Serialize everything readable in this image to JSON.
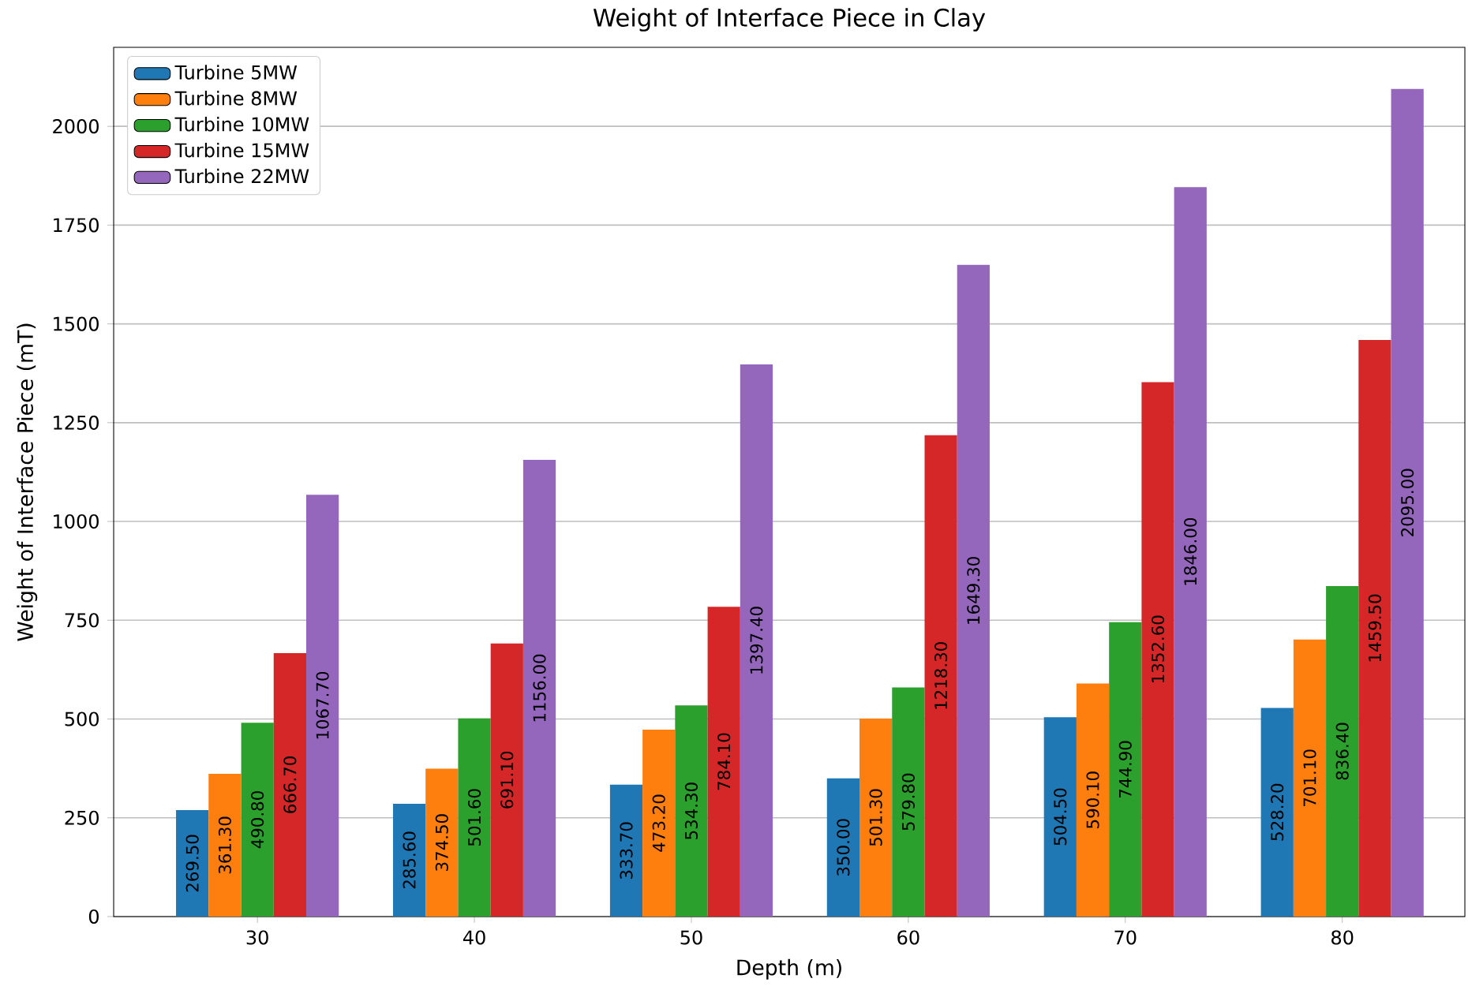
{
  "chart_data": {
    "type": "bar",
    "title": "Weight of Interface Piece in Clay",
    "xlabel": "Depth (m)",
    "ylabel": "Weight of Interface Piece (mT)",
    "categories": [
      "30",
      "40",
      "50",
      "60",
      "70",
      "80"
    ],
    "series": [
      {
        "name": "Turbine 5MW",
        "color": "#1f77b4",
        "values": [
          269.5,
          285.6,
          333.7,
          350.0,
          504.5,
          528.2
        ],
        "value_labels": [
          "269.50",
          "285.60",
          "333.70",
          "350.00",
          "504.50",
          "528.20"
        ]
      },
      {
        "name": "Turbine 8MW",
        "color": "#ff7f0e",
        "values": [
          361.3,
          374.5,
          473.2,
          501.3,
          590.1,
          701.1
        ],
        "value_labels": [
          "361.30",
          "374.50",
          "473.20",
          "501.30",
          "590.10",
          "701.10"
        ]
      },
      {
        "name": "Turbine 10MW",
        "color": "#2ca02c",
        "values": [
          490.8,
          501.6,
          534.3,
          579.8,
          744.9,
          836.4
        ],
        "value_labels": [
          "490.80",
          "501.60",
          "534.30",
          "579.80",
          "744.90",
          "836.40"
        ]
      },
      {
        "name": "Turbine 15MW",
        "color": "#d62728",
        "values": [
          666.7,
          691.1,
          784.1,
          1218.3,
          1352.6,
          1459.5
        ],
        "value_labels": [
          "666.70",
          "691.10",
          "784.10",
          "1218.30",
          "1352.60",
          "1459.50"
        ]
      },
      {
        "name": "Turbine 22MW",
        "color": "#9467bd",
        "values": [
          1067.7,
          1156.0,
          1397.4,
          1649.3,
          1846.0,
          2095.0
        ],
        "value_labels": [
          "1067.70",
          "1156.00",
          "1397.40",
          "1649.30",
          "1846.00",
          "2095.00"
        ]
      }
    ],
    "ylim": [
      0,
      2200
    ],
    "yticks": [
      0,
      250,
      500,
      750,
      1000,
      1250,
      1500,
      1750,
      2000
    ],
    "grid": "y",
    "legend": "top left"
  }
}
